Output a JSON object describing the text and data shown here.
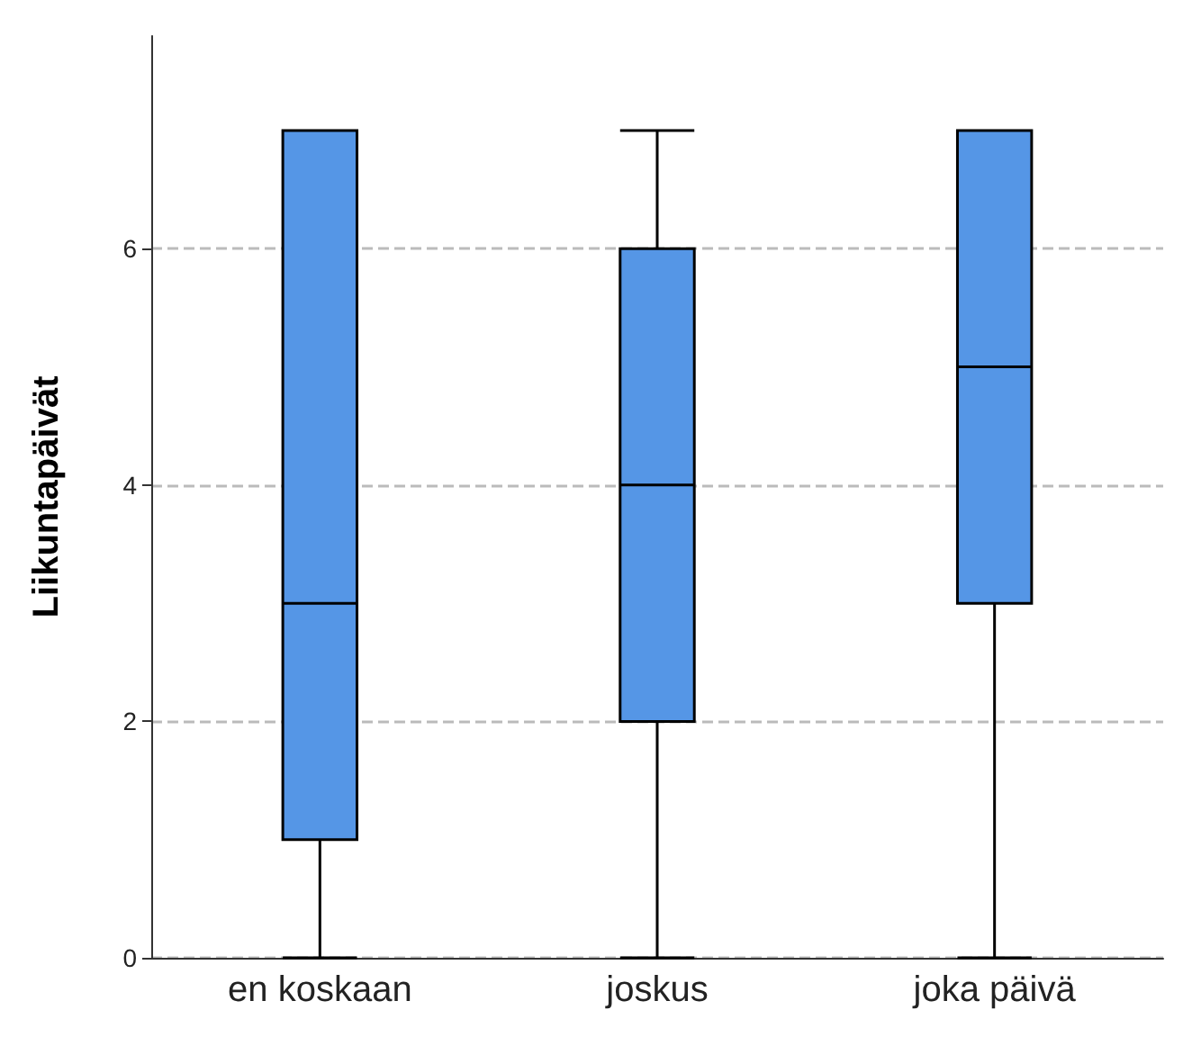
{
  "chart_data": {
    "type": "box",
    "ylabel": "Liikuntapäivät",
    "categories": [
      "en koskaan",
      "joskus",
      "joka päivä"
    ],
    "color": "#5596e6",
    "boxes": [
      {
        "low": 0,
        "q1": 1,
        "median": 3,
        "q3": 7,
        "high": 7
      },
      {
        "low": 0,
        "q1": 2,
        "median": 4,
        "q3": 6,
        "high": 7
      },
      {
        "low": 0,
        "q1": 3,
        "median": 5,
        "q3": 7,
        "high": 7
      }
    ],
    "ylim": [
      0,
      7.8
    ],
    "yticks": [
      0,
      2,
      4,
      6
    ],
    "grid": "y"
  }
}
